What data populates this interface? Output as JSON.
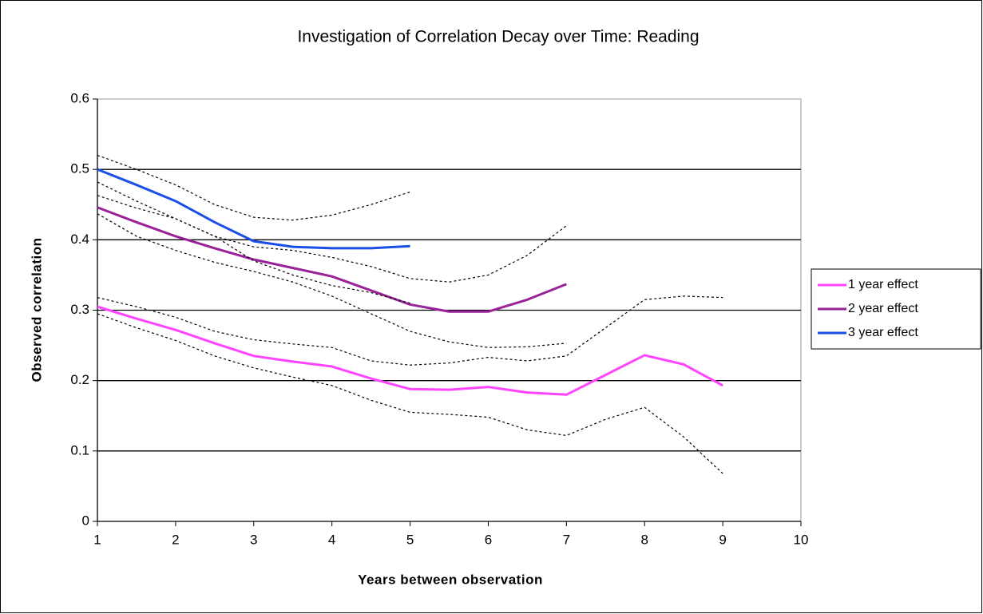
{
  "chart_data": {
    "type": "line",
    "title": "Investigation of Correlation Decay over Time: Reading",
    "x_label": "Years between observation",
    "y_label": "Observed correlation",
    "xlim": [
      1,
      10
    ],
    "xticks": [
      1,
      2,
      3,
      4,
      5,
      6,
      7,
      8,
      9,
      10
    ],
    "ylim": [
      0,
      0.6
    ],
    "yticks": [
      0,
      0.1,
      0.2,
      0.3,
      0.4,
      0.5,
      0.6
    ],
    "grid": true,
    "legend": "right",
    "series": [
      {
        "name": "1 year effect",
        "color": "#ff44ff",
        "style": "solid",
        "x": [
          1,
          1.5,
          2,
          2.5,
          3,
          3.5,
          4,
          4.5,
          5,
          5.5,
          6,
          6.5,
          7,
          7.5,
          8,
          8.5,
          9
        ],
        "values": [
          0.305,
          0.288,
          0.272,
          0.253,
          0.235,
          0.227,
          0.22,
          0.203,
          0.188,
          0.187,
          0.191,
          0.183,
          0.18,
          0.208,
          0.236,
          0.223,
          0.193
        ]
      },
      {
        "name": "2 year effect",
        "color": "#992299",
        "style": "solid",
        "x": [
          1,
          1.5,
          2,
          2.5,
          3,
          3.5,
          4,
          4.5,
          5,
          5.5,
          6,
          6.5,
          7
        ],
        "values": [
          0.446,
          0.425,
          0.405,
          0.388,
          0.372,
          0.36,
          0.348,
          0.328,
          0.308,
          0.298,
          0.298,
          0.315,
          0.337
        ]
      },
      {
        "name": "3 year effect",
        "color": "#1a4fe6",
        "style": "solid",
        "x": [
          1,
          1.5,
          2,
          2.5,
          3,
          3.5,
          4,
          4.5,
          5
        ],
        "values": [
          0.5,
          0.478,
          0.455,
          0.425,
          0.398,
          0.39,
          0.388,
          0.388,
          0.391
        ]
      },
      {
        "color": "#000000",
        "style": "dotted",
        "x": [
          1,
          1.5,
          2,
          2.5,
          3,
          3.5,
          4,
          4.5,
          5,
          5.5,
          6,
          6.5,
          7,
          7.5,
          8,
          8.5,
          9
        ],
        "values": [
          0.318,
          0.305,
          0.29,
          0.27,
          0.258,
          0.252,
          0.247,
          0.228,
          0.222,
          0.225,
          0.233,
          0.228,
          0.235,
          0.275,
          0.315,
          0.32,
          0.318
        ]
      },
      {
        "color": "#000000",
        "style": "dotted",
        "x": [
          1,
          1.5,
          2,
          2.5,
          3,
          3.5,
          4,
          4.5,
          5,
          5.5,
          6,
          6.5,
          7,
          7.5,
          8,
          8.5,
          9
        ],
        "values": [
          0.295,
          0.275,
          0.257,
          0.235,
          0.218,
          0.205,
          0.193,
          0.172,
          0.155,
          0.152,
          0.148,
          0.13,
          0.122,
          0.145,
          0.162,
          0.12,
          0.068
        ]
      },
      {
        "color": "#000000",
        "style": "dotted",
        "x": [
          1,
          1.5,
          2,
          2.5,
          3,
          3.5,
          4,
          4.5,
          5,
          5.5,
          6,
          6.5,
          7
        ],
        "values": [
          0.463,
          0.445,
          0.43,
          0.405,
          0.39,
          0.385,
          0.375,
          0.362,
          0.345,
          0.34,
          0.35,
          0.378,
          0.42
        ]
      },
      {
        "color": "#000000",
        "style": "dotted",
        "x": [
          1,
          1.5,
          2,
          2.5,
          3,
          3.5,
          4,
          4.5,
          5,
          5.5,
          6,
          6.5,
          7
        ],
        "values": [
          0.437,
          0.405,
          0.385,
          0.368,
          0.355,
          0.34,
          0.32,
          0.295,
          0.27,
          0.255,
          0.247,
          0.248,
          0.253
        ]
      },
      {
        "color": "#000000",
        "style": "dotted",
        "x": [
          1,
          1.5,
          2,
          2.5,
          3,
          3.5,
          4,
          4.5,
          5
        ],
        "values": [
          0.52,
          0.5,
          0.478,
          0.45,
          0.432,
          0.428,
          0.435,
          0.45,
          0.468
        ]
      },
      {
        "color": "#000000",
        "style": "dotted",
        "x": [
          1,
          1.5,
          2,
          2.5,
          3,
          3.5,
          4,
          4.5,
          5
        ],
        "values": [
          0.482,
          0.455,
          0.43,
          0.405,
          0.37,
          0.35,
          0.335,
          0.325,
          0.31
        ]
      }
    ]
  }
}
